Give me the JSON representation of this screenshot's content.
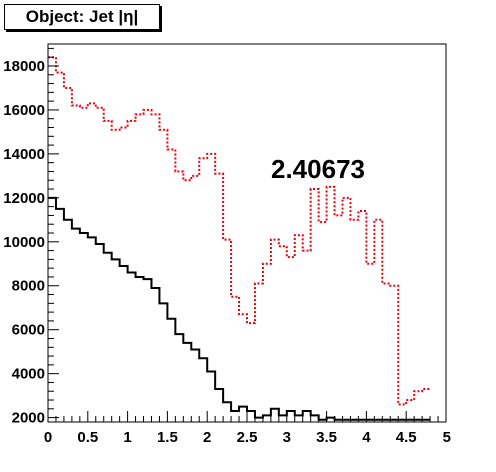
{
  "chart_data": {
    "type": "line",
    "title": "Object: Jet |η|",
    "annotation": "2.40673",
    "xlabel": "",
    "ylabel": "",
    "xlim": [
      0,
      5
    ],
    "ylim": [
      1800,
      19000
    ],
    "x_ticks": [
      0,
      0.5,
      1,
      1.5,
      2,
      2.5,
      3,
      3.5,
      4,
      4.5,
      5
    ],
    "x_tick_labels": [
      "0",
      "0.5",
      "1",
      "1.5",
      "2",
      "2.5",
      "3",
      "3.5",
      "4",
      "4.5",
      "5"
    ],
    "y_ticks": [
      2000,
      4000,
      6000,
      8000,
      10000,
      12000,
      14000,
      16000,
      18000
    ],
    "y_tick_labels": [
      "2000",
      "4000",
      "6000",
      "8000",
      "10000",
      "12000",
      "14000",
      "16000",
      "18000"
    ],
    "grid": false,
    "bin_width": 0.1,
    "series": [
      {
        "style": "dotted",
        "color": "#e8000b",
        "values": [
          18400,
          17700,
          17000,
          16200,
          16100,
          16300,
          16100,
          15500,
          15100,
          15200,
          15500,
          15800,
          16000,
          15800,
          15100,
          14200,
          13200,
          12800,
          13000,
          13800,
          14000,
          13100,
          10100,
          7500,
          6700,
          6300,
          8100,
          9000,
          10100,
          9800,
          9300,
          10300,
          9600,
          12400,
          10900,
          12500,
          11200,
          12000,
          11000,
          11400,
          9000,
          11000,
          8100,
          8000,
          2600,
          2800,
          3200,
          3300
        ]
      },
      {
        "style": "solid",
        "color": "#000000",
        "values": [
          12000,
          11500,
          11000,
          10600,
          10400,
          10200,
          9900,
          9500,
          9200,
          8900,
          8600,
          8400,
          8300,
          7900,
          7200,
          6500,
          5800,
          5400,
          5100,
          4700,
          4100,
          3300,
          2700,
          2300,
          2500,
          2300,
          2000,
          2100,
          2400,
          2100,
          2300,
          2100,
          2300,
          2100,
          1900,
          2000,
          1900,
          1900,
          1900,
          1900,
          1900,
          1900,
          1900,
          1900,
          1900,
          1900,
          1900,
          1900
        ]
      }
    ]
  }
}
